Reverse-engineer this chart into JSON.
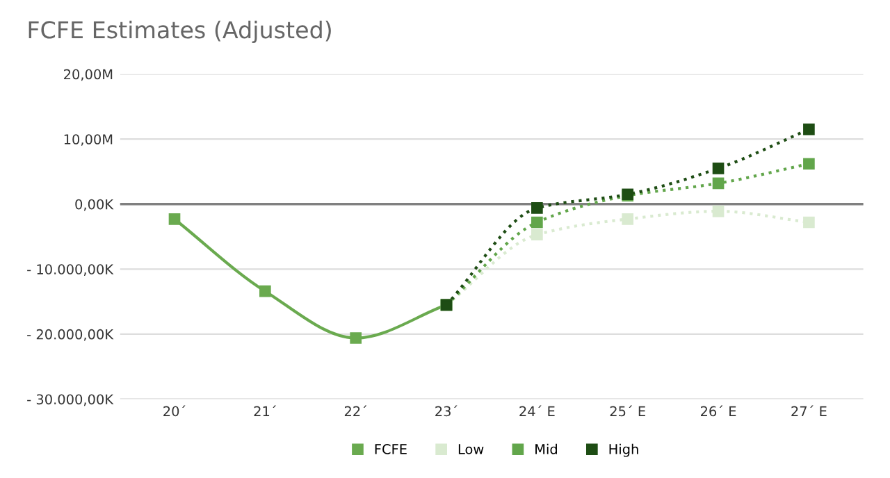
{
  "chart_data": {
    "type": "line",
    "title": "FCFE Estimates (Adjusted)",
    "categories": [
      "20´",
      "21´",
      "22´",
      "23´",
      "24´ E",
      "25´ E",
      "26´ E",
      "27´ E"
    ],
    "series": [
      {
        "name": "FCFE",
        "color": "#6aaa4f",
        "line_style": "solid",
        "values": [
          -2300000,
          -13400000,
          -20600000,
          -15500000,
          null,
          null,
          null,
          null
        ]
      },
      {
        "name": "Low",
        "color": "#d9ead0",
        "line_style": "dotted",
        "values": [
          null,
          null,
          null,
          -15500000,
          -4700000,
          -2300000,
          -1100000,
          -2800000
        ]
      },
      {
        "name": "Mid",
        "color": "#62a64b",
        "line_style": "dotted",
        "values": [
          null,
          null,
          null,
          -15500000,
          -2800000,
          1300000,
          3200000,
          6200000
        ]
      },
      {
        "name": "High",
        "color": "#1e4d14",
        "line_style": "dotted",
        "values": [
          null,
          null,
          null,
          -15500000,
          -600000,
          1500000,
          5500000,
          11500000
        ]
      }
    ],
    "ylim": [
      -30000000,
      20000000
    ],
    "yticks": [
      {
        "value": -30000000,
        "label": "- 30.000,00K"
      },
      {
        "value": -20000000,
        "label": "- 20.000,00K"
      },
      {
        "value": -10000000,
        "label": "- 10.000,00K"
      },
      {
        "value": 0,
        "label": "0,00K"
      },
      {
        "value": 10000000,
        "label": "10,00M"
      },
      {
        "value": 20000000,
        "label": "20,00M"
      }
    ],
    "ref_lines": [
      {
        "axis": "y",
        "value": 0,
        "color": "#808080"
      }
    ],
    "grid": "y",
    "legend": "bottom",
    "marker": "square"
  }
}
